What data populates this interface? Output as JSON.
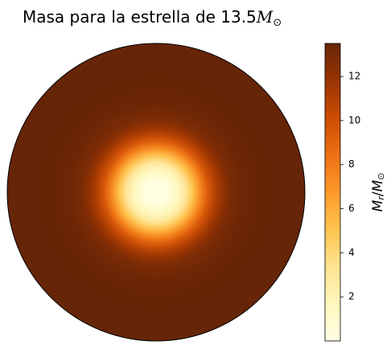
{
  "chart_data": {
    "type": "heatmap",
    "title": {
      "prefix": "Masa para la estrella de 13.5",
      "symbol": "M",
      "subscript": "⊙"
    },
    "colorbar": {
      "label_symbol": "M",
      "label_sub": "r",
      "label_sep": "/",
      "label_symbol2": "M",
      "label_sub2": "⊙",
      "range": [
        0.0,
        13.5
      ],
      "ticks": [
        2,
        4,
        6,
        8,
        10,
        12
      ],
      "tick_labels": [
        "2",
        "4",
        "6",
        "8",
        "10",
        "12"
      ],
      "colormap": "YlOrBr",
      "colormap_stops": [
        "#ffffe5",
        "#fff7bc",
        "#fee391",
        "#fec44f",
        "#fe9929",
        "#ec7014",
        "#cc4c02",
        "#993404",
        "#662506"
      ]
    },
    "shape": "disk",
    "radial_profile": {
      "r_fraction": [
        0.0,
        0.05,
        0.1,
        0.15,
        0.2,
        0.25,
        0.3,
        0.35,
        0.4,
        0.45,
        0.5,
        0.6,
        0.7,
        0.8,
        0.9,
        1.0
      ],
      "mass": [
        0.0,
        0.1,
        0.6,
        1.6,
        3.1,
        5.2,
        7.5,
        9.5,
        11.0,
        12.1,
        12.8,
        13.3,
        13.45,
        13.5,
        13.5,
        13.5
      ]
    }
  }
}
